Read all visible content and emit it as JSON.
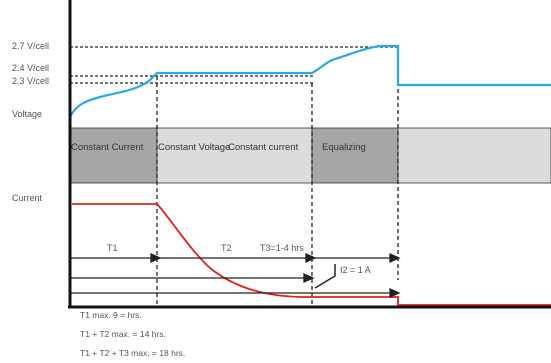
{
  "voltage_levels": {
    "v27": "2.7 V/cell",
    "v24": "2.4 V/cell",
    "v23": "2.3 V/cell"
  },
  "axis_labels": {
    "voltage": "Voltage",
    "current": "Current"
  },
  "phases": [
    "Constant Current",
    "Constant Voltage",
    "Constant current",
    "Equalizing"
  ],
  "timing": {
    "t1": "T1",
    "t2": "T2",
    "t3": "T3=1-4 hrs",
    "i2": "I2 = 1 A"
  },
  "notes": [
    "T1 max. 9 = hrs.",
    "T1 + T2 max. = 14 hrs.",
    "T1 + T2 + T3 max.  = 18 hrs."
  ],
  "colors": {
    "voltage_curve": "#2aa8e0",
    "current_curve": "#e32119",
    "band_dark": "#a6a6a6",
    "band_light": "#dcdcdc",
    "axis": "#111111"
  }
}
